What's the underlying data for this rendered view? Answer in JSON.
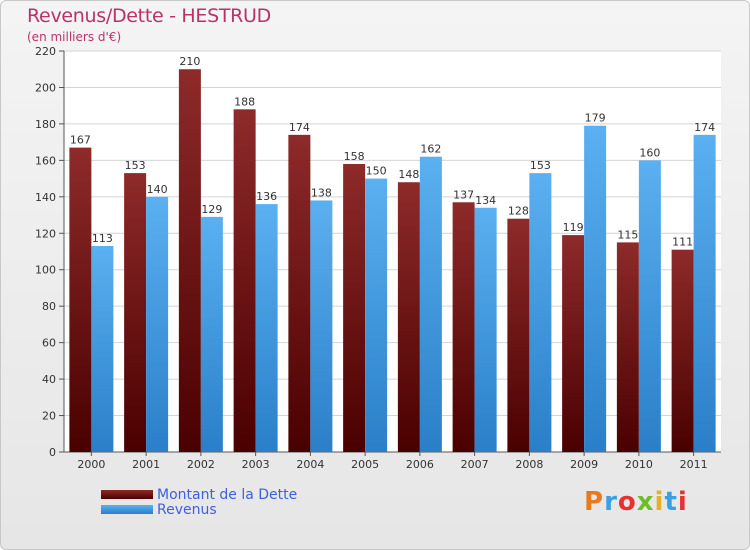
{
  "chart_data": {
    "type": "bar",
    "title": "Revenus/Dette - HESTRUD",
    "subtitle": "(en milliers d'€)",
    "categories": [
      "2000",
      "2001",
      "2002",
      "2003",
      "2004",
      "2005",
      "2006",
      "2007",
      "2008",
      "2009",
      "2010",
      "2011"
    ],
    "series": [
      {
        "name": "Montant de la Dette",
        "color": "#7b1a1a",
        "values": [
          167,
          153,
          210,
          188,
          174,
          158,
          148,
          137,
          128,
          119,
          115,
          111
        ]
      },
      {
        "name": "Revenus",
        "color": "#3f9fe8",
        "values": [
          113,
          140,
          129,
          136,
          138,
          150,
          162,
          134,
          153,
          179,
          160,
          174
        ]
      }
    ],
    "ylim": [
      0,
      220
    ],
    "yticks": [
      0,
      20,
      40,
      60,
      80,
      100,
      120,
      140,
      160,
      180,
      200,
      220
    ],
    "grid": true,
    "legend_position": "bottom-left"
  },
  "logo": {
    "text": "Proxiti"
  }
}
